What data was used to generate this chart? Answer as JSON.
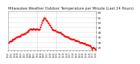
{
  "title": "Milwaukee Weather Outdoor Temperature per Minute (Last 24 Hours)",
  "title_fontsize": 3.8,
  "line_color": "#ff0000",
  "background_color": "#ffffff",
  "plot_bg_color": "#ffffff",
  "grid_color": "#cccccc",
  "y_ticks": [
    25,
    30,
    35,
    40,
    45,
    50,
    55,
    60
  ],
  "ylim": [
    22,
    62
  ],
  "xlim": [
    0,
    139
  ],
  "vlines_x": [
    46,
    76
  ],
  "x_values": [
    0,
    1,
    2,
    3,
    4,
    5,
    6,
    7,
    8,
    9,
    10,
    11,
    12,
    13,
    14,
    15,
    16,
    17,
    18,
    19,
    20,
    21,
    22,
    23,
    24,
    25,
    26,
    27,
    28,
    29,
    30,
    31,
    32,
    33,
    34,
    35,
    36,
    37,
    38,
    39,
    40,
    41,
    42,
    43,
    44,
    45,
    46,
    47,
    48,
    49,
    50,
    51,
    52,
    53,
    54,
    55,
    56,
    57,
    58,
    59,
    60,
    61,
    62,
    63,
    64,
    65,
    66,
    67,
    68,
    69,
    70,
    71,
    72,
    73,
    74,
    75,
    76,
    77,
    78,
    79,
    80,
    81,
    82,
    83,
    84,
    85,
    86,
    87,
    88,
    89,
    90,
    91,
    92,
    93,
    94,
    95,
    96,
    97,
    98,
    99,
    100,
    101,
    102,
    103,
    104,
    105,
    106,
    107,
    108,
    109,
    110,
    111,
    112,
    113,
    114,
    115,
    116,
    117,
    118,
    119,
    120,
    121,
    122,
    123,
    124,
    125,
    126,
    127,
    128,
    129,
    130,
    131,
    132,
    133,
    134,
    135,
    136,
    137,
    138,
    139
  ],
  "y_values": [
    30,
    30,
    31,
    31,
    31,
    32,
    32,
    33,
    33,
    33,
    34,
    34,
    35,
    35,
    35,
    36,
    36,
    36,
    36,
    37,
    37,
    38,
    38,
    38,
    38,
    39,
    39,
    39,
    40,
    40,
    41,
    41,
    42,
    42,
    43,
    44,
    44,
    43,
    43,
    44,
    44,
    44,
    43,
    43,
    44,
    44,
    44,
    43,
    43,
    43,
    44,
    46,
    48,
    50,
    52,
    53,
    54,
    55,
    55,
    54,
    53,
    52,
    51,
    50,
    49,
    48,
    47,
    46,
    45,
    44,
    43,
    43,
    42,
    42,
    42,
    42,
    41,
    41,
    41,
    40,
    40,
    40,
    40,
    40,
    39,
    39,
    38,
    38,
    37,
    37,
    36,
    36,
    36,
    35,
    35,
    35,
    35,
    34,
    34,
    34,
    33,
    33,
    33,
    33,
    33,
    32,
    32,
    32,
    32,
    32,
    31,
    31,
    31,
    30,
    30,
    30,
    30,
    30,
    29,
    29,
    29,
    29,
    29,
    28,
    28,
    28,
    28,
    27,
    27,
    27,
    26,
    25,
    24,
    23,
    25,
    25,
    24,
    24,
    23,
    23
  ],
  "marker": ".",
  "markersize": 1.2,
  "linewidth": 0.5,
  "linestyle": "--",
  "num_xticks": 28
}
